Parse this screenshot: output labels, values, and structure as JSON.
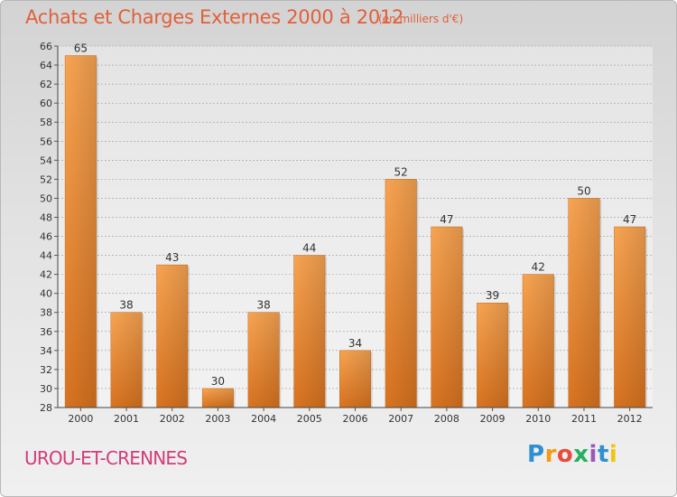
{
  "header": {
    "title": "Achats et Charges Externes 2000 à 2012",
    "unit": "(en milliers d'€)"
  },
  "footer": {
    "commune": "UROU-ET-CRENNES",
    "logo_letters": [
      "P",
      "r",
      "o",
      "x",
      "i",
      "t",
      "i"
    ],
    "logo_colors": [
      "#2f8fd0",
      "#f39c12",
      "#e74c3c",
      "#27ae60",
      "#9b59b6",
      "#2f8fd0",
      "#f1c40f"
    ]
  },
  "chart_data": {
    "type": "bar",
    "title": "Achats et Charges Externes 2000 à 2012",
    "subtitle": "(en milliers d'€)",
    "categories": [
      "2000",
      "2001",
      "2002",
      "2003",
      "2004",
      "2005",
      "2006",
      "2007",
      "2008",
      "2009",
      "2010",
      "2011",
      "2012"
    ],
    "values": [
      65,
      38,
      43,
      30,
      38,
      44,
      34,
      52,
      47,
      39,
      42,
      50,
      47
    ],
    "ylim": [
      28,
      66
    ],
    "yticks": [
      28,
      30,
      32,
      34,
      36,
      38,
      40,
      42,
      44,
      46,
      48,
      50,
      52,
      54,
      56,
      58,
      60,
      62,
      64,
      66
    ],
    "grid": true,
    "bar_color": "#f0913e"
  }
}
